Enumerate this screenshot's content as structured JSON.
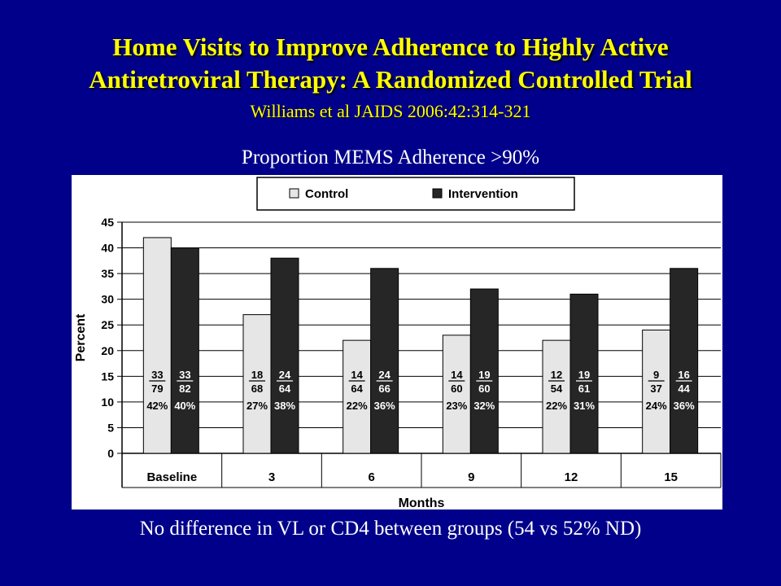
{
  "slide": {
    "title_line1": "Home Visits to Improve Adherence to Highly Active",
    "title_line2": "Antiretroviral Therapy: A Randomized Controlled Trial",
    "citation": "Williams et al JAIDS 2006:42:314-321",
    "subtitle": "Proportion MEMS Adherence >90%",
    "footer": "No difference in VL or CD4 between groups (54 vs 52% ND)"
  },
  "colors": {
    "background": "#00008a",
    "title": "#ffff00",
    "control_bar": "#e6e6e6",
    "intervention_bar": "#262626"
  },
  "chart_data": {
    "type": "bar",
    "categories": [
      "Baseline",
      "3",
      "6",
      "9",
      "12",
      "15"
    ],
    "series": [
      {
        "name": "Control",
        "values": [
          42,
          27,
          22,
          23,
          22,
          24
        ],
        "labels": [
          {
            "top": "33",
            "bottom": "79",
            "pct": "42%"
          },
          {
            "top": "18",
            "bottom": "68",
            "pct": "27%"
          },
          {
            "top": "14",
            "bottom": "64",
            "pct": "22%"
          },
          {
            "top": "14",
            "bottom": "60",
            "pct": "23%"
          },
          {
            "top": "12",
            "bottom": "54",
            "pct": "22%"
          },
          {
            "top": "9",
            "bottom": "37",
            "pct": "24%"
          }
        ]
      },
      {
        "name": "Intervention",
        "values": [
          40,
          38,
          36,
          32,
          31,
          36
        ],
        "labels": [
          {
            "top": "33",
            "bottom": "82",
            "pct": "40%"
          },
          {
            "top": "24",
            "bottom": "64",
            "pct": "38%"
          },
          {
            "top": "24",
            "bottom": "66",
            "pct": "36%"
          },
          {
            "top": "19",
            "bottom": "60",
            "pct": "32%"
          },
          {
            "top": "19",
            "bottom": "61",
            "pct": "31%"
          },
          {
            "top": "16",
            "bottom": "44",
            "pct": "36%"
          }
        ]
      }
    ],
    "xlabel": "Months",
    "ylabel": "Percent",
    "ylim": [
      0,
      45
    ],
    "yticks": [
      0,
      5,
      10,
      15,
      20,
      25,
      30,
      35,
      40,
      45
    ],
    "grid": true,
    "legend_position": "top-center"
  }
}
